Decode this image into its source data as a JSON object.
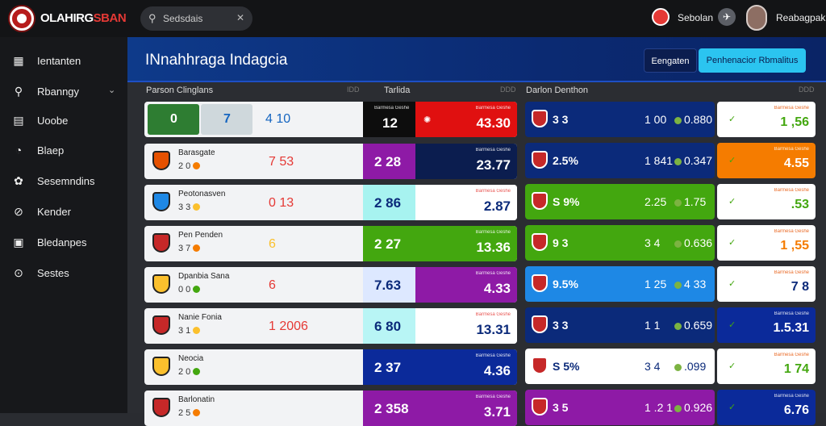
{
  "brand": {
    "part1": "OLAHIRG",
    "part2": "SBAN"
  },
  "search": {
    "placeholder": "Sedsdais"
  },
  "topbar": {
    "user_label": "Sebolan",
    "profile_name": "Reabagpak"
  },
  "sidebar": {
    "items": [
      {
        "label": "Ientanten",
        "icon": "grid-icon"
      },
      {
        "label": "Rbanngy",
        "icon": "search-icon",
        "chevron": true
      },
      {
        "label": "Uoobe",
        "icon": "calendar-icon"
      },
      {
        "label": "Blaep",
        "icon": "clock-icon"
      },
      {
        "label": "Sesemndins",
        "icon": "settings-icon"
      },
      {
        "label": "Kender",
        "icon": "compass-icon"
      },
      {
        "label": "Bledanpes",
        "icon": "briefcase-icon"
      },
      {
        "label": "Sestes",
        "icon": "info-icon"
      }
    ]
  },
  "banner": {
    "title": "INnahhraga Indagcia",
    "button_secondary": "Eengaten",
    "button_primary": "Penhenacior Rbmalitus"
  },
  "columns": {
    "left_header": "Parson Clinglans",
    "left_mini": "IDD",
    "mid_header": "Tarlida",
    "mid_mini": "DDD",
    "right_header": "Darlon Denthon",
    "right_mini": "DDD"
  },
  "first_row": {
    "score_home": "0",
    "score_away": "7",
    "center": "4 10",
    "mid_value": "12",
    "mid_label": "Barmesa Geshe",
    "odd_value": "43.30",
    "odd_label": "Barmesa Geshe"
  },
  "left_rows": [
    {
      "name": "Barasgate",
      "sub": "2 0",
      "center": "7 53",
      "center_color": "#e53935",
      "mid_value": "2 28",
      "mid_bg": "#8e1aa6",
      "odd_value": "23.77",
      "odd_label": "Barmesa Geshe",
      "odd_bg": "#0b1d4f",
      "crest": "#e65100",
      "dot": "#f57c00"
    },
    {
      "name": "Peotonasven",
      "sub": "3 3",
      "center": "0 13",
      "center_color": "#e53935",
      "mid_value": "2 86",
      "mid_bg": "#a7f3f0",
      "odd_value": "2.87",
      "odd_label": "Barmesa Geshe",
      "odd_bg": "#ffffff",
      "crest": "#1e88e5",
      "dot": "#fbc02d"
    },
    {
      "name": "Pen Penden",
      "sub": "3 7",
      "center": "6",
      "center_color": "#fbc02d",
      "mid_value": "2 27",
      "mid_bg": "#43a70f",
      "odd_value": "13.36",
      "odd_label": "Barmesa Geshe",
      "odd_bg": "#43a70f",
      "crest": "#c62828",
      "dot": "#f57c00"
    },
    {
      "name": "Dpanbia Sana",
      "sub": "0 0",
      "center": "6",
      "center_color": "#e53935",
      "mid_value": "7.63",
      "mid_bg": "#dde8ff",
      "odd_value": "4.33",
      "odd_label": "Barmesa Geshe",
      "odd_bg": "#8e1aa6",
      "crest": "#fbc02d",
      "dot": "#43a70f"
    },
    {
      "name": "Nanie Fonia",
      "sub": "3 1",
      "center": "1 2006",
      "center_color": "#e53935",
      "mid_value": "6 80",
      "mid_bg": "#b8f5f5",
      "odd_value": "13.31",
      "odd_label": "Barmesa Geshe",
      "odd_bg": "#ffffff",
      "crest": "#c62828",
      "dot": "#fbc02d"
    },
    {
      "name": "Neocia",
      "sub": "2 0",
      "center": "",
      "center_color": "#43a70f",
      "mid_value": "2 37",
      "mid_bg": "#0b2a9a",
      "odd_value": "4.36",
      "odd_label": "Barmesa Geshe",
      "odd_bg": "#0b2a9a",
      "crest": "#fbc02d",
      "dot": "#43a70f"
    },
    {
      "name": "Barlonatin",
      "sub": "2 5",
      "center": "",
      "center_color": "#e53935",
      "mid_value": "2 358",
      "mid_bg": "#8e1aa6",
      "odd_value": "3.71",
      "odd_label": "Barmesa Geshe",
      "odd_bg": "#8e1aa6",
      "crest": "#c62828",
      "dot": "#f57c00"
    }
  ],
  "right_rows": [
    {
      "team": "3 3",
      "mid": "1 00",
      "value": "0.880",
      "bg": "#0b2a7a",
      "odd": "1 ,56",
      "odd_color": "#43a70f",
      "odd_bg": "#ffffff",
      "label": "Barmesa Geshe"
    },
    {
      "team": "2.5%",
      "mid": "1 841",
      "value": "0.347",
      "bg": "#0b2a7a",
      "odd": "4.55",
      "odd_color": "#ffffff",
      "odd_bg": "#f57c00",
      "label": "Barmesa Geshe"
    },
    {
      "team": "S 9%",
      "mid": "2.25",
      "value": "1.75",
      "bg": "#43a70f",
      "odd": ".53",
      "odd_color": "#43a70f",
      "odd_bg": "#ffffff",
      "label": "Barmesa Geshe"
    },
    {
      "team": "9 3",
      "mid": "3 4",
      "value": "0.636",
      "bg": "#43a70f",
      "odd": "1 ,55",
      "odd_color": "#f57c00",
      "odd_bg": "#ffffff",
      "label": "Barmesa Geshe"
    },
    {
      "team": "9.5%",
      "mid": "1 25",
      "value": "4 33",
      "bg": "#1e88e5",
      "odd": "7 8",
      "odd_color": "#0b2a7a",
      "odd_bg": "#ffffff",
      "label": "Barmesa Geshe"
    },
    {
      "team": "3 3",
      "mid": "1 1 ",
      "value": "0.659",
      "bg": "#0b2a7a",
      "odd": "1.5.31",
      "odd_color": "#ffffff",
      "odd_bg": "#0b2a9a",
      "label": "Barmesa Geshe"
    },
    {
      "team": "S 5%",
      "mid": "3 4",
      "value": ".099",
      "bg": "#ffffff",
      "odd": "1 74",
      "odd_color": "#43a70f",
      "odd_bg": "#ffffff",
      "label": "Barmesa Geshe"
    },
    {
      "team": "3 5",
      "mid": "1 .2 1",
      "value": "0.926",
      "bg": "#8e1aa6",
      "odd": "6.76",
      "odd_color": "#ffffff",
      "odd_bg": "#0b2a9a",
      "label": "Barmesa Geshe"
    }
  ]
}
